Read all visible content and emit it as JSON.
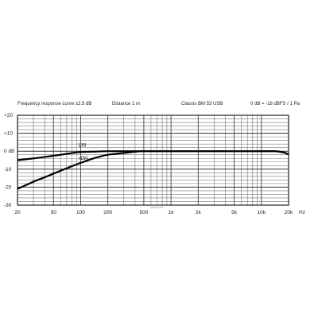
{
  "header": {
    "left": "Frequency response curve ±2.5 dB",
    "distance": "Distance 1 m",
    "model": "Classis BM 53 USB",
    "reference": "0 dB = -18 dBFS / 1 Pa"
  },
  "watermark": "www.ts.de",
  "chart_data": {
    "type": "line",
    "x_scale": "log",
    "xlim": [
      20,
      20000
    ],
    "ylim": [
      -30,
      20
    ],
    "x_unit": "Hz",
    "grid": true,
    "x_ticks": [
      {
        "v": 20,
        "label": "20"
      },
      {
        "v": 50,
        "label": "50"
      },
      {
        "v": 100,
        "label": "100"
      },
      {
        "v": 200,
        "label": "200"
      },
      {
        "v": 500,
        "label": "500"
      },
      {
        "v": 1000,
        "label": "1k"
      },
      {
        "v": 2000,
        "label": "2k"
      },
      {
        "v": 5000,
        "label": "5k"
      },
      {
        "v": 10000,
        "label": "10k"
      },
      {
        "v": 20000,
        "label": "20k"
      }
    ],
    "y_ticks": [
      {
        "v": 20,
        "label": "+20"
      },
      {
        "v": 10,
        "label": "+10"
      },
      {
        "v": 0,
        "label": "0 dB"
      },
      {
        "v": -10,
        "label": "-10"
      },
      {
        "v": -20,
        "label": "-20"
      },
      {
        "v": -30,
        "label": "-30"
      }
    ],
    "series": [
      {
        "name": "LIN",
        "x": [
          20,
          30,
          40,
          50,
          60,
          80,
          100,
          150,
          200,
          500,
          1000,
          5000,
          10000,
          14000,
          16000,
          18000,
          20000
        ],
        "y": [
          -5,
          -4,
          -3.2,
          -2.5,
          -2,
          -1,
          -0.5,
          -0.2,
          0,
          0,
          0,
          0,
          0,
          0,
          -0.3,
          -0.8,
          -1.8
        ]
      },
      {
        "name": "/150",
        "x": [
          20,
          30,
          40,
          50,
          70,
          100,
          150,
          200,
          300,
          400,
          500,
          1000,
          5000,
          10000,
          14000,
          16000,
          18000,
          20000
        ],
        "y": [
          -21,
          -17,
          -14.5,
          -12.5,
          -9.5,
          -6.5,
          -3.5,
          -2,
          -1,
          -0.3,
          0,
          0,
          0,
          0,
          0,
          -0.3,
          -0.8,
          -1.8
        ]
      }
    ]
  }
}
